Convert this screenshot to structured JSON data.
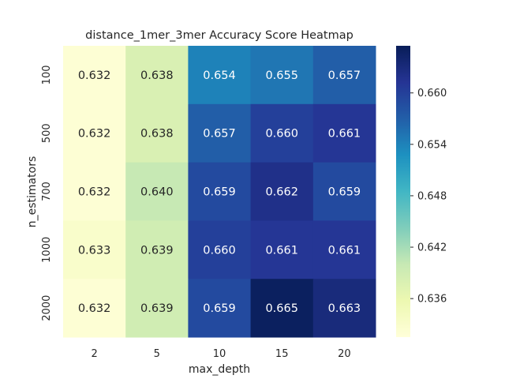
{
  "chart_data": {
    "type": "heatmap",
    "title": "distance_1mer_3mer Accuracy Score Heatmap",
    "xlabel": "max_depth",
    "ylabel": "n_estimators",
    "x_categories": [
      "2",
      "5",
      "10",
      "15",
      "20"
    ],
    "y_categories": [
      "100",
      "500",
      "700",
      "1000",
      "2000"
    ],
    "values": [
      [
        0.632,
        0.638,
        0.654,
        0.655,
        0.657
      ],
      [
        0.632,
        0.638,
        0.657,
        0.66,
        0.661
      ],
      [
        0.632,
        0.64,
        0.659,
        0.662,
        0.659
      ],
      [
        0.633,
        0.639,
        0.66,
        0.661,
        0.661
      ],
      [
        0.632,
        0.639,
        0.659,
        0.665,
        0.663
      ]
    ],
    "value_format": "3 decimals",
    "colormap": "YlGnBu",
    "colorbar": {
      "range": [
        0.6315,
        0.6655
      ],
      "ticks": [
        "0.636",
        "0.642",
        "0.648",
        "0.654",
        "0.660"
      ]
    },
    "grid": false
  }
}
